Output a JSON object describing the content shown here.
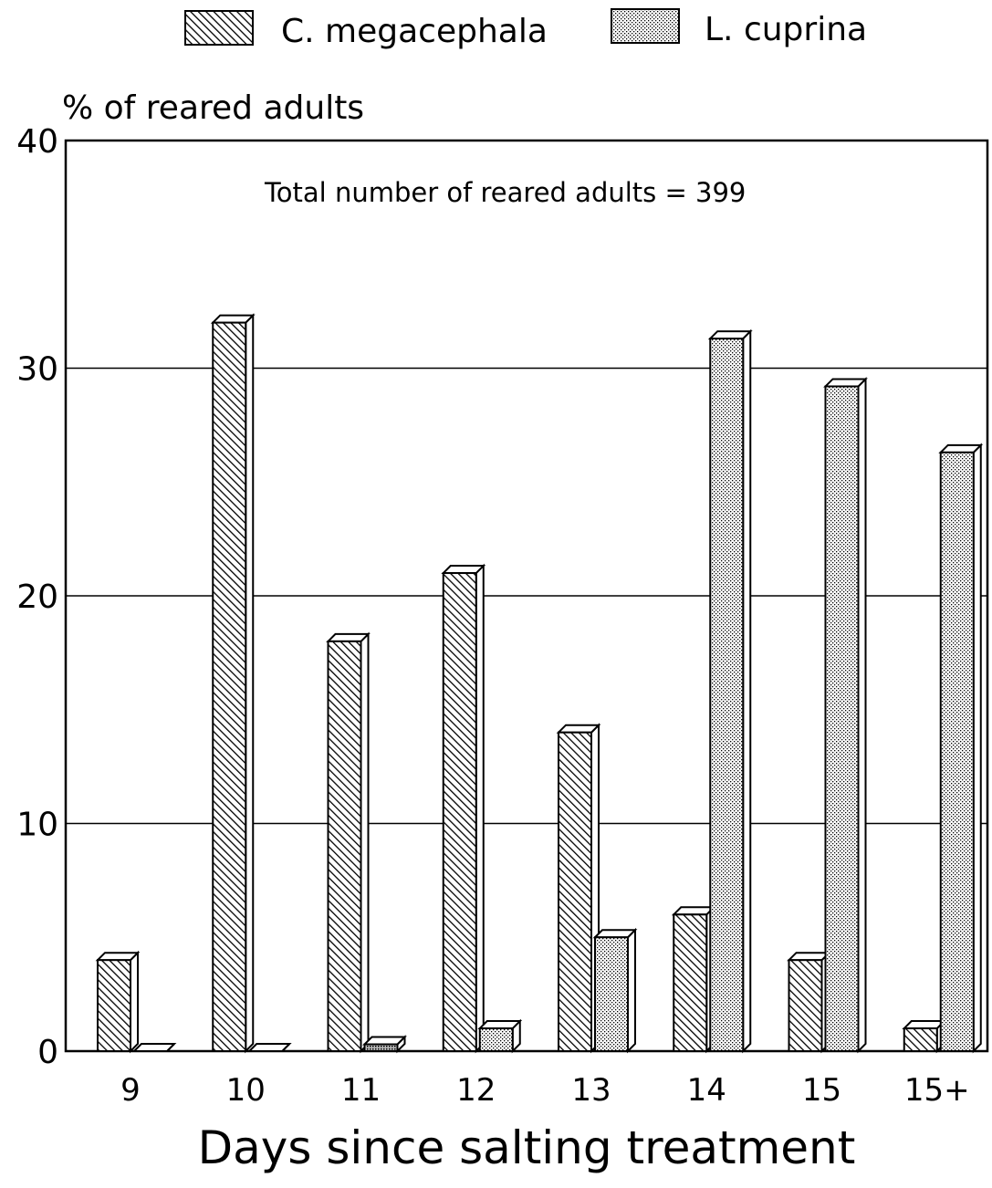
{
  "chart_data": {
    "type": "bar",
    "title": "",
    "annotation": "Total number of reared adults = 399",
    "xlabel": "Days since salting treatment",
    "ylabel": "% of reared adults",
    "ylim": [
      0,
      40
    ],
    "yticks": [
      "0",
      "10",
      "20",
      "30",
      "40"
    ],
    "grid": "horizontal",
    "legend_position": "top",
    "categories": [
      "9",
      "10",
      "11",
      "12",
      "13",
      "14",
      "15",
      "15+"
    ],
    "series": [
      {
        "name": "C. megacephala",
        "pattern": "diagonal-hatch",
        "values": [
          4.0,
          32.0,
          18.0,
          21.0,
          14.0,
          6.0,
          4.0,
          1.0
        ]
      },
      {
        "name": "L. cuprina",
        "pattern": "stipple",
        "values": [
          0.0,
          0.0,
          0.3,
          1.0,
          5.0,
          31.3,
          29.2,
          26.3
        ]
      }
    ],
    "colors": {
      "ink": "#000000",
      "background": "#ffffff"
    }
  }
}
